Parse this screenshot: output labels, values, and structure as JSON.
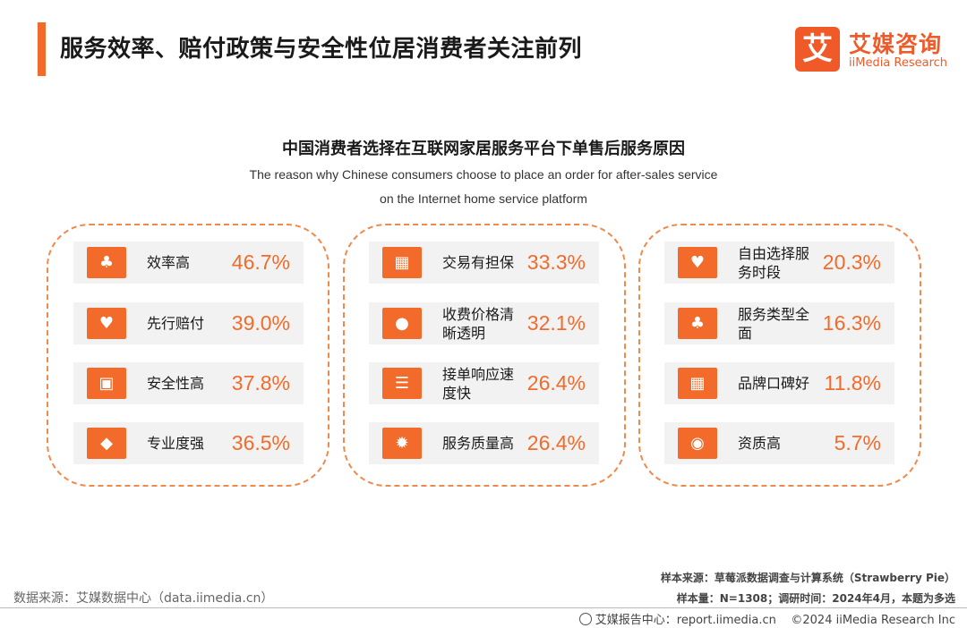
{
  "header": {
    "title": "服务效率、赔付政策与安全性位居消费者关注前列",
    "logo_mark": "艾",
    "logo_cn": "艾媒咨询",
    "logo_en": "iiMedia Research"
  },
  "chart_data": {
    "type": "table",
    "title": "中国消费者选择在互联网家居服务平台下单售后服务原因",
    "subtitle_line1": "The reason why Chinese consumers choose to place an order for after-sales service",
    "subtitle_line2": "on the Internet home service platform",
    "groups": [
      {
        "items": [
          {
            "label": "效率高",
            "value": "46.7%",
            "icon": "clover-icon"
          },
          {
            "label": "先行赔付",
            "value": "39.0%",
            "icon": "heart-icon"
          },
          {
            "label": "安全性高",
            "value": "37.8%",
            "icon": "box-icon"
          },
          {
            "label": "专业度强",
            "value": "36.5%",
            "icon": "diamond-icon"
          }
        ]
      },
      {
        "items": [
          {
            "label": "交易有担保",
            "value": "33.3%",
            "icon": "gift-icon"
          },
          {
            "label": "收费价格清晰透明",
            "value": "32.1%",
            "icon": "coin-icon"
          },
          {
            "label": "接单响应速度快",
            "value": "26.4%",
            "icon": "list-icon"
          },
          {
            "label": "服务质量高",
            "value": "26.4%",
            "icon": "badge-icon"
          }
        ]
      },
      {
        "items": [
          {
            "label": "自由选择服务时段",
            "value": "20.3%",
            "icon": "heart-icon"
          },
          {
            "label": "服务类型全面",
            "value": "16.3%",
            "icon": "clover-icon"
          },
          {
            "label": "品牌口碑好",
            "value": "11.8%",
            "icon": "gift-icon"
          },
          {
            "label": "资质高",
            "value": "5.7%",
            "icon": "signal-icon"
          }
        ]
      }
    ]
  },
  "source": {
    "left": "数据来源：艾媒数据中心（data.iimedia.cn）",
    "sample_source": "样本来源：草莓派数据调查与计算系统（Strawberry Pie）",
    "sample_size": "样本量：N=1308；调研时间：2024年4月，本题为多选",
    "footer_center": "艾媒报告中心：report.iimedia.cn",
    "footer_copyright": "©2024  iiMedia Research  Inc"
  }
}
